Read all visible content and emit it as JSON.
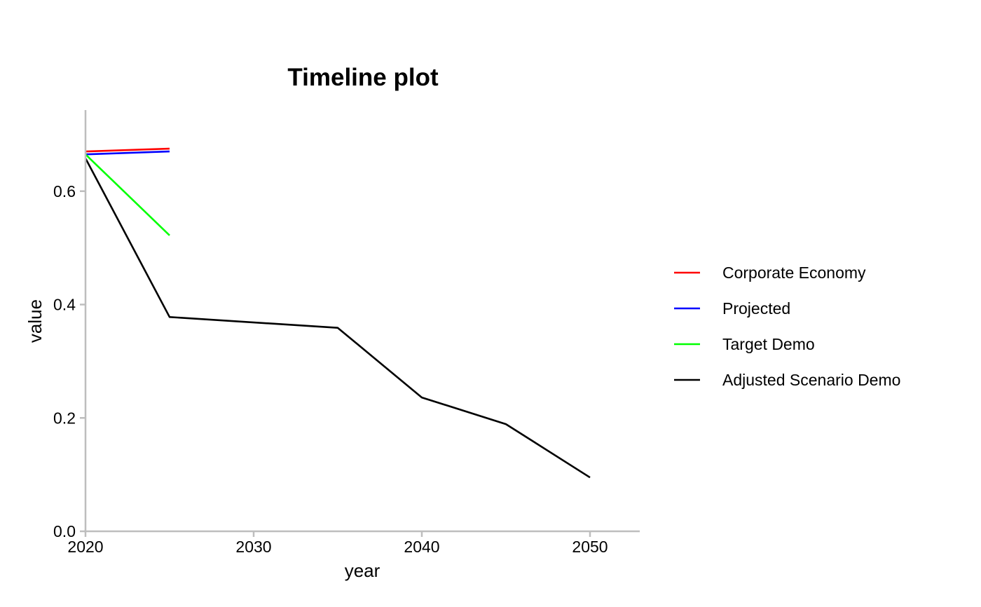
{
  "chart_data": {
    "type": "line",
    "title": "Timeline plot",
    "xlabel": "year",
    "ylabel": "value",
    "xlim": [
      2020,
      2053
    ],
    "ylim": [
      0,
      0.74
    ],
    "x_ticks": [
      2020,
      2030,
      2040,
      2050
    ],
    "y_ticks": [
      0.0,
      0.2,
      0.4,
      0.6
    ],
    "x_tick_labels": [
      "2020",
      "2030",
      "2040",
      "2050"
    ],
    "y_tick_labels": [
      "0.0",
      "0.2",
      "0.4",
      "0.6"
    ],
    "grid": false,
    "legend_position": "right",
    "series": [
      {
        "name": "Corporate Economy",
        "color": "#ff0000",
        "x": [
          2020,
          2025
        ],
        "y": [
          0.67,
          0.675
        ]
      },
      {
        "name": "Projected",
        "color": "#0000ff",
        "x": [
          2020,
          2025
        ],
        "y": [
          0.665,
          0.67
        ]
      },
      {
        "name": "Target Demo",
        "color": "#00ff00",
        "x": [
          2020,
          2025
        ],
        "y": [
          0.665,
          0.522
        ]
      },
      {
        "name": "Adjusted Scenario Demo",
        "color": "#000000",
        "x": [
          2020,
          2025,
          2035,
          2040,
          2045,
          2050
        ],
        "y": [
          0.658,
          0.378,
          0.359,
          0.236,
          0.189,
          0.095
        ]
      }
    ]
  }
}
